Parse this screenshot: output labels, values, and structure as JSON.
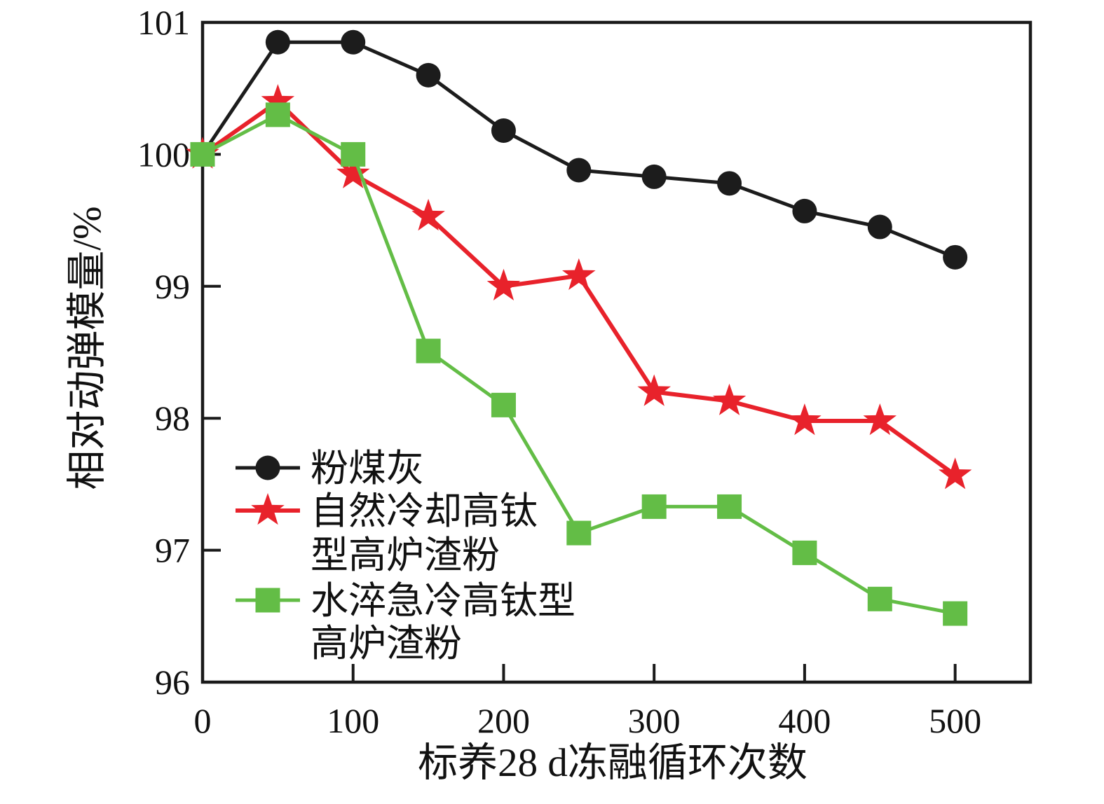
{
  "chart_data": {
    "type": "line",
    "x": [
      0,
      50,
      100,
      150,
      200,
      250,
      300,
      350,
      400,
      450,
      500
    ],
    "series": [
      {
        "name": "粉煤灰",
        "marker": "circle",
        "color": "#1c1c1c",
        "line_width": 5,
        "values": [
          100.0,
          100.85,
          100.85,
          100.6,
          100.18,
          99.88,
          99.83,
          99.78,
          99.57,
          99.45,
          99.22
        ]
      },
      {
        "name": "自然冷却高钛型高炉渣粉",
        "marker": "star",
        "color": "#e8222b",
        "line_width": 6,
        "values": [
          100.0,
          100.4,
          99.85,
          99.53,
          99.0,
          99.08,
          98.2,
          98.13,
          97.98,
          97.98,
          97.57
        ]
      },
      {
        "name": "水淬急冷高钛型高炉渣粉",
        "marker": "square",
        "color": "#63bd46",
        "line_width": 5,
        "values": [
          100.0,
          100.3,
          100.0,
          98.51,
          98.1,
          97.13,
          97.33,
          97.33,
          96.98,
          96.63,
          96.52
        ]
      }
    ],
    "xlabel": "标养28 d冻融循环次数",
    "ylabel": "相对动弹模量/%",
    "xlim": [
      0,
      550
    ],
    "ylim": [
      96,
      101
    ],
    "xticks": [
      0,
      100,
      200,
      300,
      400,
      500
    ],
    "yticks": [
      96,
      97,
      98,
      99,
      100,
      101
    ],
    "grid": false,
    "legend_position": "inside-lower-left",
    "legend_rows": [
      {
        "marker": "circle",
        "label": "粉煤灰"
      },
      {
        "marker": "star",
        "label": "自然冷却高钛"
      },
      {
        "marker": null,
        "label": "型高炉渣粉"
      },
      {
        "marker": "square",
        "label": "水淬急冷高钛型"
      },
      {
        "marker": null,
        "label": "高炉渣粉"
      }
    ]
  },
  "colors": {
    "frame": "#1a1a1a",
    "background": "#ffffff",
    "text": "#111111"
  }
}
